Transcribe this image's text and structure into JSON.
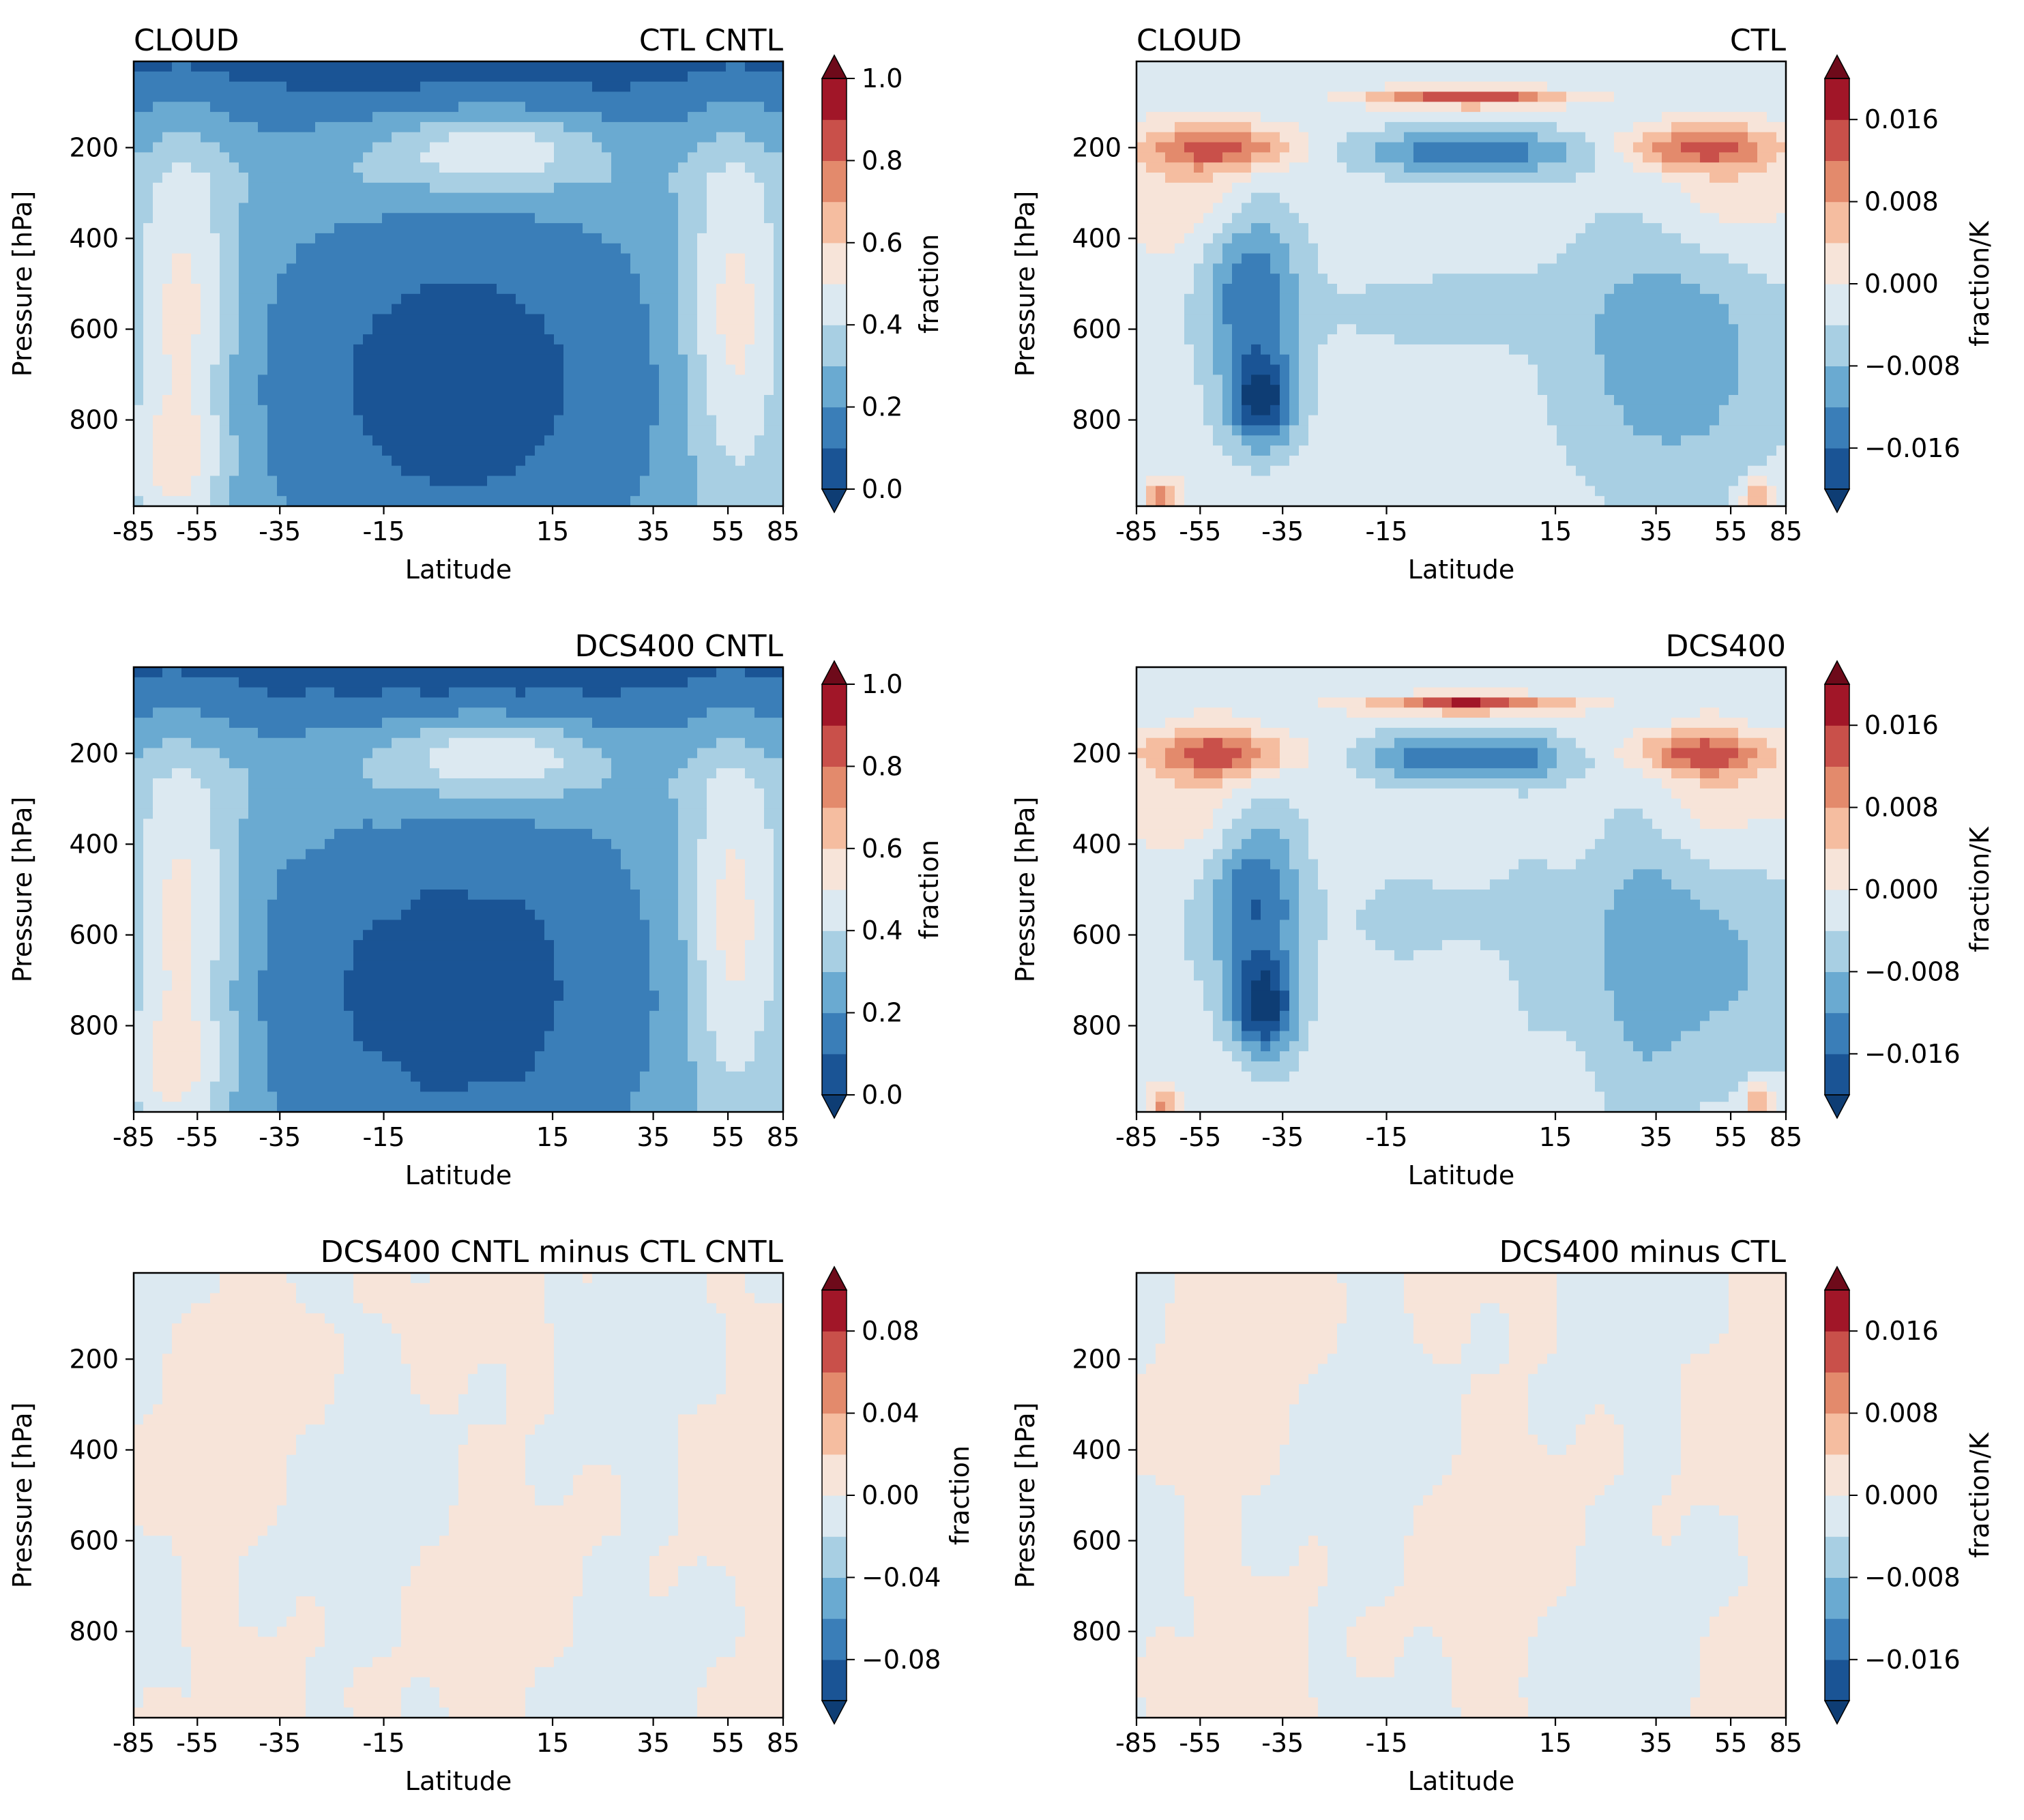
{
  "figure_title": "",
  "palette": {
    "rdbu_12": [
      "#0e3d74",
      "#1a5495",
      "#3a7eb8",
      "#6aaad1",
      "#a8cfe3",
      "#dce9f1",
      "#f7e4d9",
      "#f5bda0",
      "#e38a6c",
      "#c9504a",
      "#a11628",
      "#6e0a1a"
    ],
    "frame": "#000000"
  },
  "chart_data": [
    {
      "type": "contourf",
      "panel": "a",
      "title_left": "CLOUD",
      "title_right": "CTL CNTL",
      "xlabel": "Latitude",
      "ylabel": "Pressure [hPa]",
      "xticks": [
        "-85",
        "-55",
        "-35",
        "-15",
        "15",
        "35",
        "55",
        "85"
      ],
      "yticks": [
        "200",
        "400",
        "600",
        "800"
      ],
      "xlim": [
        -85,
        85
      ],
      "ylim": [
        990,
        10
      ],
      "colorbar": {
        "label": "fraction",
        "extend": "both",
        "levels": [
          0,
          0.1,
          0.2,
          0.3,
          0.4,
          0.5,
          0.6,
          0.7,
          0.8,
          0.9,
          1.0
        ],
        "ticks": [
          "0.0",
          "0.2",
          "0.4",
          "0.6",
          "0.8",
          "1.0"
        ]
      },
      "kind": "clim"
    },
    {
      "type": "contourf",
      "panel": "b",
      "title_left": "CLOUD",
      "title_right": "CTL",
      "xlabel": "Latitude",
      "ylabel": "Pressure [hPa]",
      "xticks": [
        "-85",
        "-55",
        "-35",
        "-15",
        "15",
        "35",
        "55",
        "85"
      ],
      "yticks": [
        "200",
        "400",
        "600",
        "800"
      ],
      "xlim": [
        -85,
        85
      ],
      "ylim": [
        990,
        10
      ],
      "colorbar": {
        "label": "fraction/K",
        "extend": "both",
        "levels": [
          -0.02,
          -0.016,
          -0.012,
          -0.008,
          -0.004,
          0,
          0.004,
          0.008,
          0.012,
          0.016,
          0.02
        ],
        "ticks": [
          "−0.016",
          "−0.008",
          "0.000",
          "0.008",
          "0.016"
        ]
      },
      "kind": "resp"
    },
    {
      "type": "contourf",
      "panel": "c",
      "title_left": "",
      "title_right": "DCS400 CNTL",
      "xlabel": "Latitude",
      "ylabel": "Pressure [hPa]",
      "xticks": [
        "-85",
        "-55",
        "-35",
        "-15",
        "15",
        "35",
        "55",
        "85"
      ],
      "yticks": [
        "200",
        "400",
        "600",
        "800"
      ],
      "xlim": [
        -85,
        85
      ],
      "ylim": [
        990,
        10
      ],
      "colorbar": {
        "label": "fraction",
        "extend": "both",
        "levels": [
          0,
          0.1,
          0.2,
          0.3,
          0.4,
          0.5,
          0.6,
          0.7,
          0.8,
          0.9,
          1.0
        ],
        "ticks": [
          "0.0",
          "0.2",
          "0.4",
          "0.6",
          "0.8",
          "1.0"
        ]
      },
      "kind": "clim"
    },
    {
      "type": "contourf",
      "panel": "d",
      "title_left": "",
      "title_right": "DCS400",
      "xlabel": "Latitude",
      "ylabel": "Pressure [hPa]",
      "xticks": [
        "-85",
        "-55",
        "-35",
        "-15",
        "15",
        "35",
        "55",
        "85"
      ],
      "yticks": [
        "200",
        "400",
        "600",
        "800"
      ],
      "xlim": [
        -85,
        85
      ],
      "ylim": [
        990,
        10
      ],
      "colorbar": {
        "label": "fraction/K",
        "extend": "both",
        "levels": [
          -0.02,
          -0.016,
          -0.012,
          -0.008,
          -0.004,
          0,
          0.004,
          0.008,
          0.012,
          0.016,
          0.02
        ],
        "ticks": [
          "−0.016",
          "−0.008",
          "0.000",
          "0.008",
          "0.016"
        ]
      },
      "kind": "resp"
    },
    {
      "type": "contourf",
      "panel": "e",
      "title_left": "",
      "title_right": "DCS400 CNTL minus CTL CNTL",
      "xlabel": "Latitude",
      "ylabel": "Pressure [hPa]",
      "xticks": [
        "-85",
        "-55",
        "-35",
        "-15",
        "15",
        "35",
        "55",
        "85"
      ],
      "yticks": [
        "200",
        "400",
        "600",
        "800"
      ],
      "xlim": [
        -85,
        85
      ],
      "ylim": [
        990,
        10
      ],
      "colorbar": {
        "label": "fraction",
        "extend": "both",
        "levels": [
          -0.1,
          -0.08,
          -0.06,
          -0.04,
          -0.02,
          0,
          0.02,
          0.04,
          0.06,
          0.08,
          0.1
        ],
        "ticks": [
          "−0.08",
          "−0.04",
          "0.00",
          "0.04",
          "0.08"
        ]
      },
      "kind": "diff"
    },
    {
      "type": "contourf",
      "panel": "f",
      "title_left": "",
      "title_right": "DCS400 minus CTL",
      "xlabel": "Latitude",
      "ylabel": "Pressure [hPa]",
      "xticks": [
        "-85",
        "-55",
        "-35",
        "-15",
        "15",
        "35",
        "55",
        "85"
      ],
      "yticks": [
        "200",
        "400",
        "600",
        "800"
      ],
      "xlim": [
        -85,
        85
      ],
      "ylim": [
        990,
        10
      ],
      "colorbar": {
        "label": "fraction/K",
        "extend": "both",
        "levels": [
          -0.02,
          -0.016,
          -0.012,
          -0.008,
          -0.004,
          0,
          0.004,
          0.008,
          0.012,
          0.016,
          0.02
        ],
        "ticks": [
          "−0.016",
          "−0.008",
          "0.000",
          "0.008",
          "0.016"
        ]
      },
      "kind": "diff"
    }
  ]
}
